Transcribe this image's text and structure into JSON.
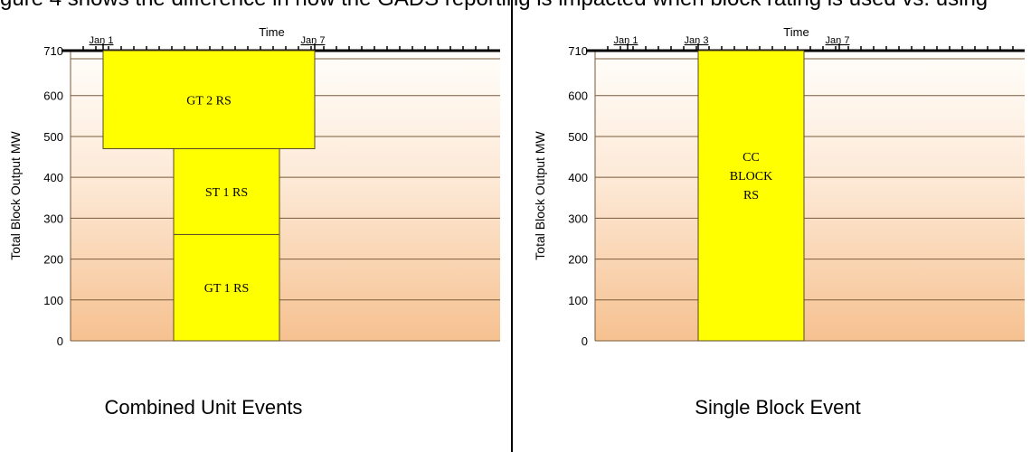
{
  "top_text": "gure 4 shows the difference in how the GADS reporting is impacted when block rating is used vs. using",
  "chart_data": [
    {
      "type": "bar",
      "subtype": "gantt-stacked",
      "xlabel": "Time",
      "ylabel": "Total Block Output MW",
      "ylim": [
        0,
        710
      ],
      "yticks": [
        0,
        100,
        200,
        300,
        400,
        500,
        600,
        710
      ],
      "date_ticks": [
        "Jan 1",
        "Jan 7"
      ],
      "grid": true,
      "bars": [
        {
          "label": "GT 2 RS",
          "start": "Jan 1",
          "end": "Jan 7",
          "bottom": 470,
          "top": 710,
          "color": "#ffff00"
        },
        {
          "label": "ST 1 RS",
          "start": "Jan 3",
          "end": "Jan 6",
          "bottom": 260,
          "top": 470,
          "color": "#ffff00"
        },
        {
          "label": "GT 1 RS",
          "start": "Jan 3",
          "end": "Jan 6",
          "bottom": 0,
          "top": 260,
          "color": "#ffff00"
        }
      ],
      "caption": "Combined Unit Events"
    },
    {
      "type": "bar",
      "subtype": "gantt-stacked",
      "xlabel": "Time",
      "ylabel": "Total Block Output MW",
      "ylim": [
        0,
        710
      ],
      "yticks": [
        0,
        100,
        200,
        300,
        400,
        500,
        600,
        710
      ],
      "date_ticks": [
        "Jan 1",
        "Jan 3",
        "Jan 7"
      ],
      "grid": true,
      "bars": [
        {
          "label_lines": [
            "CC",
            "BLOCK",
            "RS"
          ],
          "start": "Jan 3",
          "end": "Jan 6",
          "bottom": 0,
          "top": 710,
          "color": "#ffff00"
        }
      ],
      "caption": "Single Block Event"
    }
  ]
}
